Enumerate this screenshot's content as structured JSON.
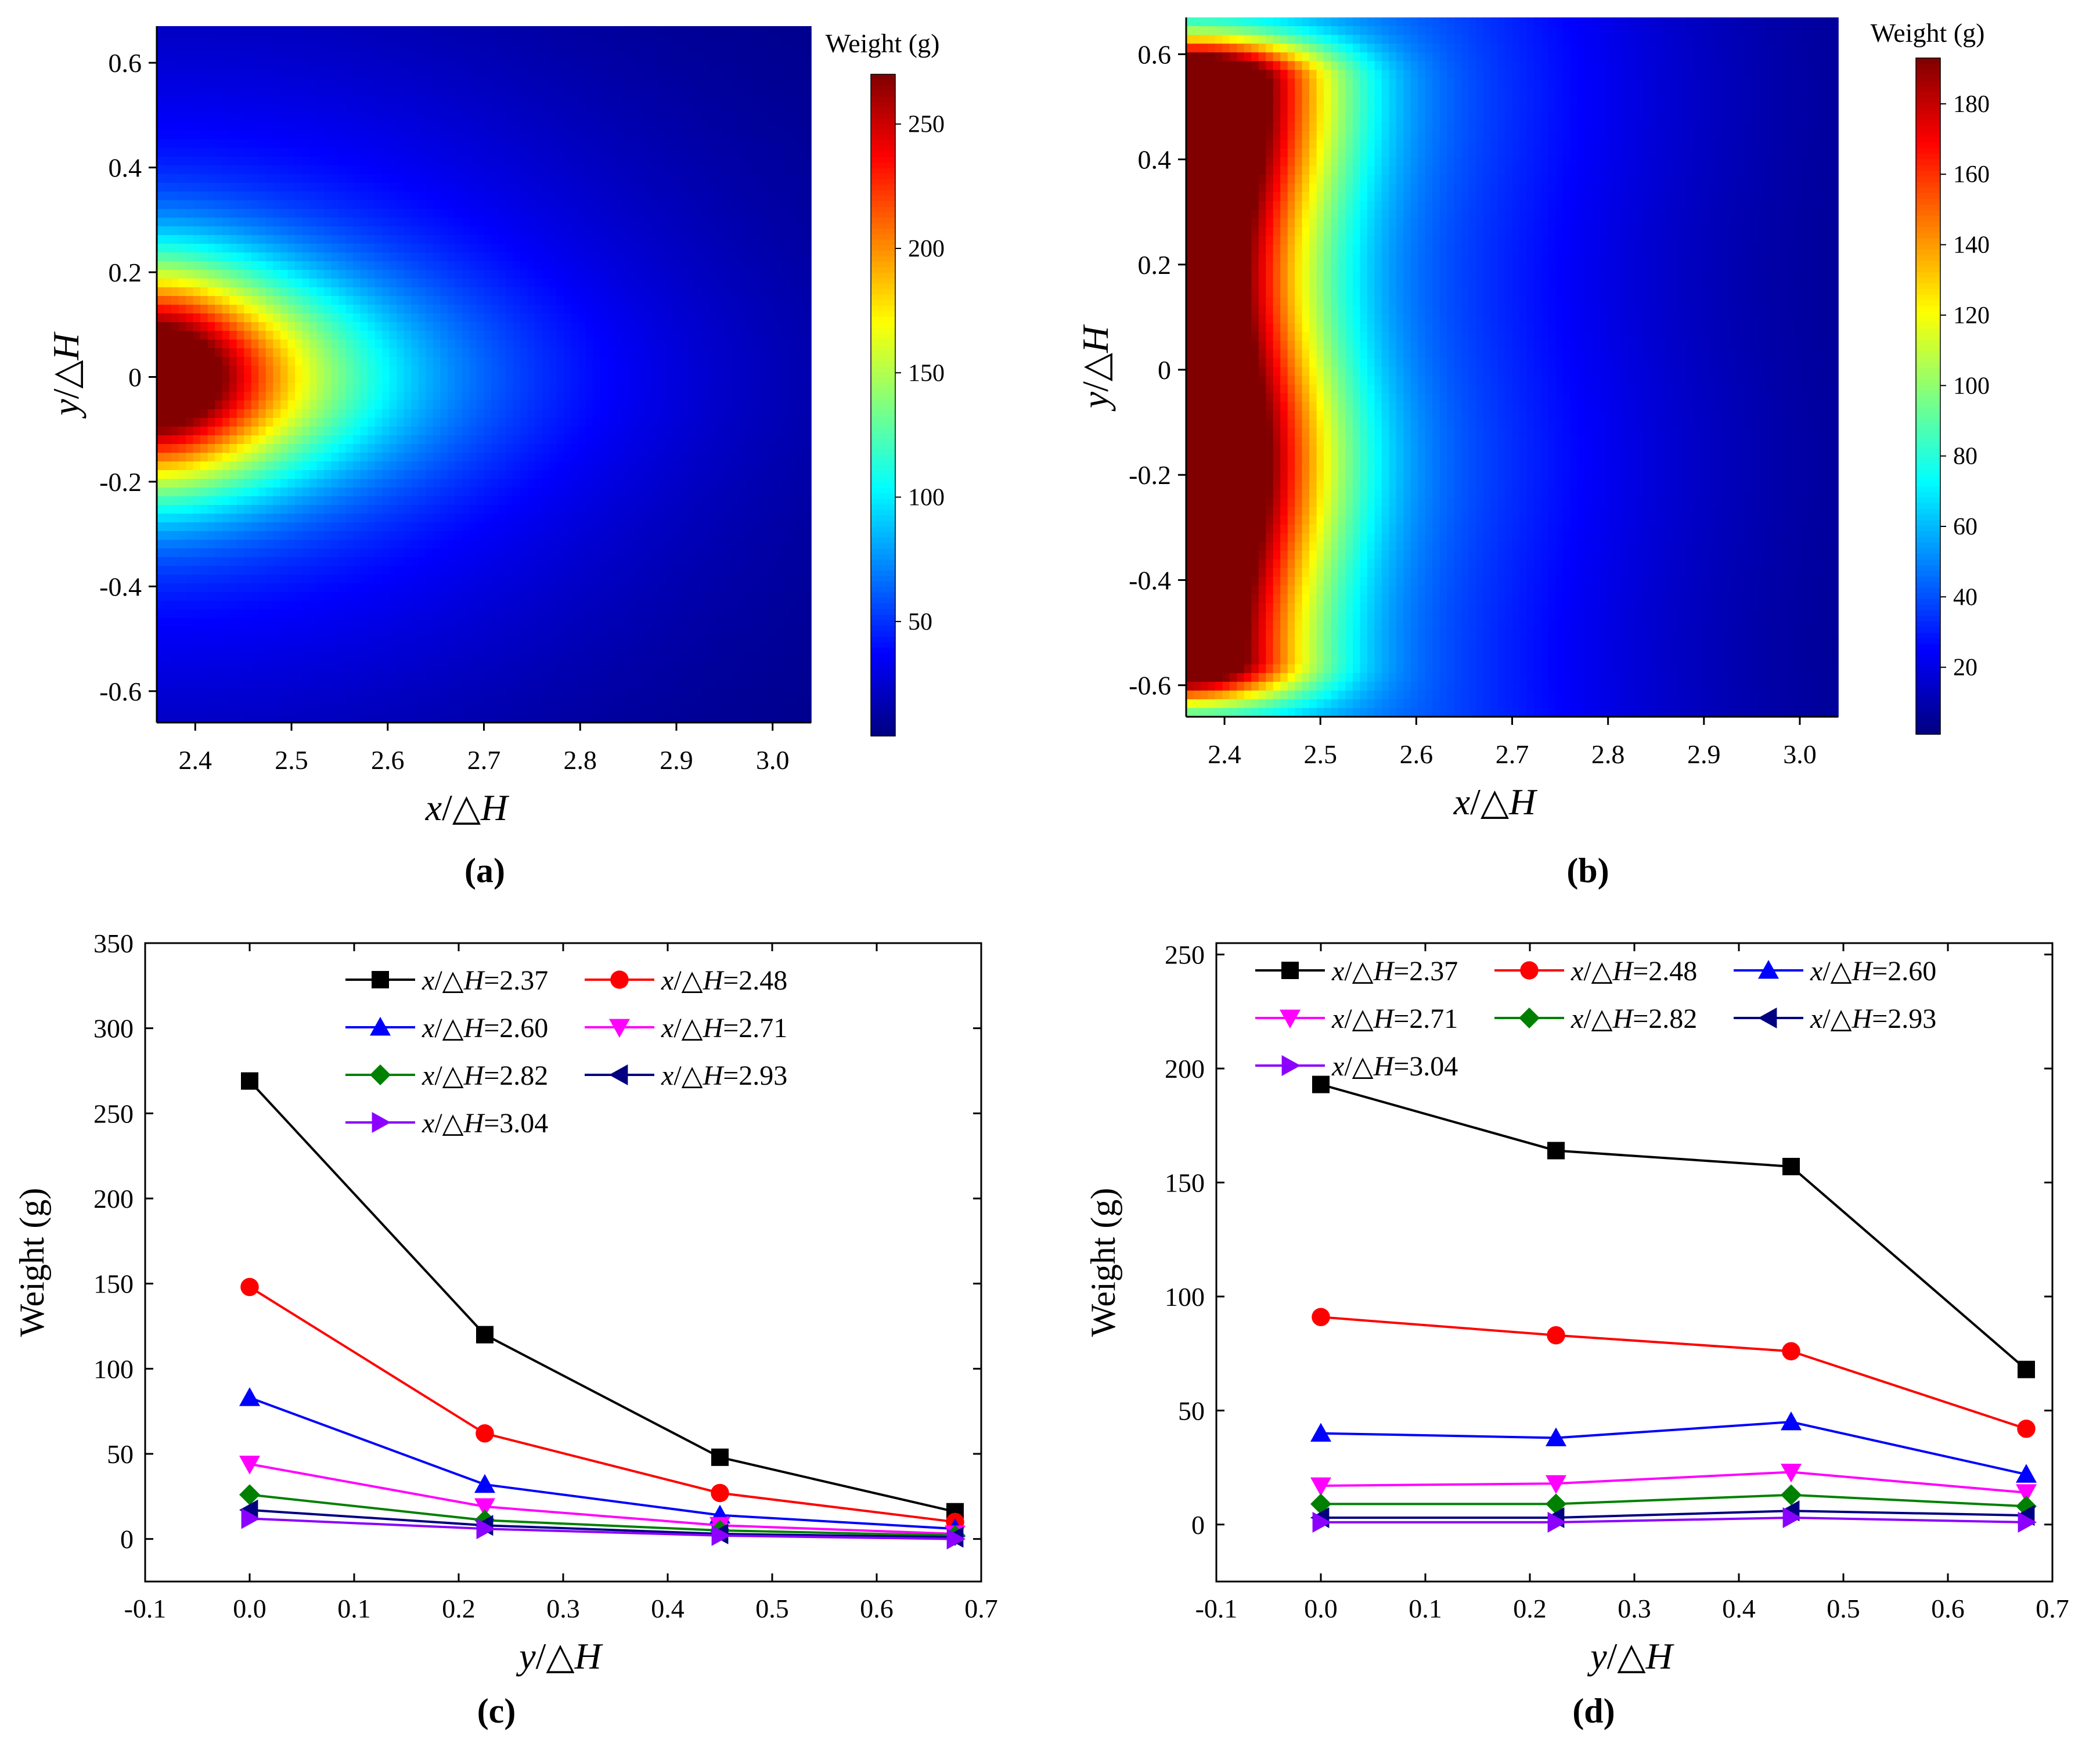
{
  "chart_data": [
    {
      "panel_label": "(a)",
      "type": "heatmap",
      "xlabel_var": "x",
      "xlabel_rest": "/△",
      "xlabel_end": "H",
      "ylabel_var": "y",
      "ylabel_rest": "/△",
      "ylabel_end": "H",
      "xlim": [
        2.36,
        3.04
      ],
      "ylim": [
        -0.66,
        0.67
      ],
      "x_ticks": [
        2.4,
        2.5,
        2.6,
        2.7,
        2.8,
        2.9,
        3.0
      ],
      "x_tick_labels": [
        "2.4",
        "2.5",
        "2.6",
        "2.7",
        "2.8",
        "2.9",
        "3.0"
      ],
      "y_ticks": [
        0.6,
        0.4,
        0.2,
        0,
        -0.2,
        -0.4,
        -0.6
      ],
      "y_tick_labels": [
        "0.6",
        "0.4",
        "0.2",
        "0",
        "-0.2",
        "-0.4",
        "-0.6"
      ],
      "colorbar_title": "Weight (g)",
      "colorbar_range": [
        4,
        270
      ],
      "colorbar_ticks": [
        50,
        100,
        150,
        200,
        250
      ],
      "colorbar_tick_labels": [
        "50",
        "100",
        "150",
        "200",
        "250"
      ],
      "hotspot": {
        "x": 2.37,
        "y": 0.0,
        "value": 269
      },
      "background_value": 5
    },
    {
      "panel_label": "(b)",
      "type": "heatmap",
      "xlabel_var": "x",
      "xlabel_rest": "/△",
      "xlabel_end": "H",
      "ylabel_var": "y",
      "ylabel_rest": "/△",
      "ylabel_end": "H",
      "xlim": [
        2.36,
        3.04
      ],
      "ylim": [
        -0.66,
        0.67
      ],
      "x_ticks": [
        2.4,
        2.5,
        2.6,
        2.7,
        2.8,
        2.9,
        3.0
      ],
      "x_tick_labels": [
        "2.4",
        "2.5",
        "2.6",
        "2.7",
        "2.8",
        "2.9",
        "3.0"
      ],
      "y_ticks": [
        0.6,
        0.4,
        0.2,
        0,
        -0.2,
        -0.4,
        -0.6
      ],
      "y_tick_labels": [
        "0.6",
        "0.4",
        "0.2",
        "0",
        "-0.2",
        "-0.4",
        "-0.6"
      ],
      "colorbar_title": "Weight (g)",
      "colorbar_range": [
        1,
        193
      ],
      "colorbar_ticks": [
        20,
        40,
        60,
        80,
        100,
        120,
        140,
        160,
        180
      ],
      "colorbar_tick_labels": [
        "20",
        "40",
        "60",
        "80",
        "100",
        "120",
        "140",
        "160",
        "180"
      ],
      "hotspot": {
        "x": 2.37,
        "y": 0.0,
        "value": 193
      },
      "background_value": 2
    },
    {
      "panel_label": "(c)",
      "type": "line",
      "xlabel_var": "y",
      "xlabel_rest": "/△",
      "xlabel_end": "H",
      "ylabel": "Weight (g)",
      "xlim": [
        -0.1,
        0.7
      ],
      "ylim": [
        -25,
        350
      ],
      "x_ticks": [
        -0.1,
        0.0,
        0.1,
        0.2,
        0.3,
        0.4,
        0.5,
        0.6,
        0.7
      ],
      "x_tick_labels": [
        "-0.1",
        "0.0",
        "0.1",
        "0.2",
        "0.3",
        "0.4",
        "0.5",
        "0.6",
        "0.7"
      ],
      "y_ticks": [
        0,
        50,
        100,
        150,
        200,
        250,
        300,
        350
      ],
      "y_tick_labels": [
        "0",
        "50",
        "100",
        "150",
        "200",
        "250",
        "300",
        "350"
      ],
      "x": [
        0.0,
        0.225,
        0.45,
        0.675
      ],
      "legend_columns": 2,
      "series": [
        {
          "name_var": "x",
          "name_rest": "/△",
          "name_end": "H",
          "name_value": "=2.37",
          "color": "#000000",
          "marker": "square",
          "values": [
            269,
            120,
            48,
            16
          ]
        },
        {
          "name_var": "x",
          "name_rest": "/△",
          "name_end": "H",
          "name_value": "=2.48",
          "color": "#ff0000",
          "marker": "circle",
          "values": [
            148,
            62,
            27,
            10
          ]
        },
        {
          "name_var": "x",
          "name_rest": "/△",
          "name_end": "H",
          "name_value": "=2.60",
          "color": "#0000ff",
          "marker": "triangle-up",
          "values": [
            83,
            32,
            14,
            6
          ]
        },
        {
          "name_var": "x",
          "name_rest": "/△",
          "name_end": "H",
          "name_value": "=2.71",
          "color": "#ff00ff",
          "marker": "triangle-down",
          "values": [
            44,
            19,
            8,
            3
          ]
        },
        {
          "name_var": "x",
          "name_rest": "/△",
          "name_end": "H",
          "name_value": "=2.82",
          "color": "#008000",
          "marker": "diamond",
          "values": [
            26,
            11,
            5,
            2
          ]
        },
        {
          "name_var": "x",
          "name_rest": "/△",
          "name_end": "H",
          "name_value": "=2.93",
          "color": "#000080",
          "marker": "triangle-left",
          "values": [
            17,
            8,
            3,
            1
          ]
        },
        {
          "name_var": "x",
          "name_rest": "/△",
          "name_end": "H",
          "name_value": "=3.04",
          "color": "#8b00ff",
          "marker": "triangle-right",
          "values": [
            12,
            6,
            2,
            0
          ]
        }
      ]
    },
    {
      "panel_label": "(d)",
      "type": "line",
      "xlabel_var": "y",
      "xlabel_rest": "/△",
      "xlabel_end": "H",
      "ylabel": "Weight (g)",
      "xlim": [
        -0.1,
        0.7
      ],
      "ylim": [
        -25,
        255
      ],
      "x_ticks": [
        -0.1,
        0.0,
        0.1,
        0.2,
        0.3,
        0.4,
        0.5,
        0.6,
        0.7
      ],
      "x_tick_labels": [
        "-0.1",
        "0.0",
        "0.1",
        "0.2",
        "0.3",
        "0.4",
        "0.5",
        "0.6",
        "0.7"
      ],
      "y_ticks": [
        0,
        50,
        100,
        150,
        200,
        250
      ],
      "y_tick_labels": [
        "0",
        "50",
        "100",
        "150",
        "200",
        "250"
      ],
      "x": [
        0.0,
        0.225,
        0.45,
        0.675
      ],
      "legend_columns": 3,
      "series": [
        {
          "name_var": "x",
          "name_rest": "/△",
          "name_end": "H",
          "name_value": "=2.37",
          "color": "#000000",
          "marker": "square",
          "values": [
            193,
            164,
            157,
            68
          ]
        },
        {
          "name_var": "x",
          "name_rest": "/△",
          "name_end": "H",
          "name_value": "=2.48",
          "color": "#ff0000",
          "marker": "circle",
          "values": [
            91,
            83,
            76,
            42
          ]
        },
        {
          "name_var": "x",
          "name_rest": "/△",
          "name_end": "H",
          "name_value": "=2.60",
          "color": "#0000ff",
          "marker": "triangle-up",
          "values": [
            40,
            38,
            45,
            22
          ]
        },
        {
          "name_var": "x",
          "name_rest": "/△",
          "name_end": "H",
          "name_value": "=2.71",
          "color": "#ff00ff",
          "marker": "triangle-down",
          "values": [
            17,
            18,
            23,
            14
          ]
        },
        {
          "name_var": "x",
          "name_rest": "/△",
          "name_end": "H",
          "name_value": "=2.82",
          "color": "#008000",
          "marker": "diamond",
          "values": [
            9,
            9,
            13,
            8
          ]
        },
        {
          "name_var": "x",
          "name_rest": "/△",
          "name_end": "H",
          "name_value": "=2.93",
          "color": "#000080",
          "marker": "triangle-left",
          "values": [
            3,
            3,
            6,
            4
          ]
        },
        {
          "name_var": "x",
          "name_rest": "/△",
          "name_end": "H",
          "name_value": "=3.04",
          "color": "#8b00ff",
          "marker": "triangle-right",
          "values": [
            1,
            1,
            3,
            1
          ]
        }
      ]
    }
  ]
}
